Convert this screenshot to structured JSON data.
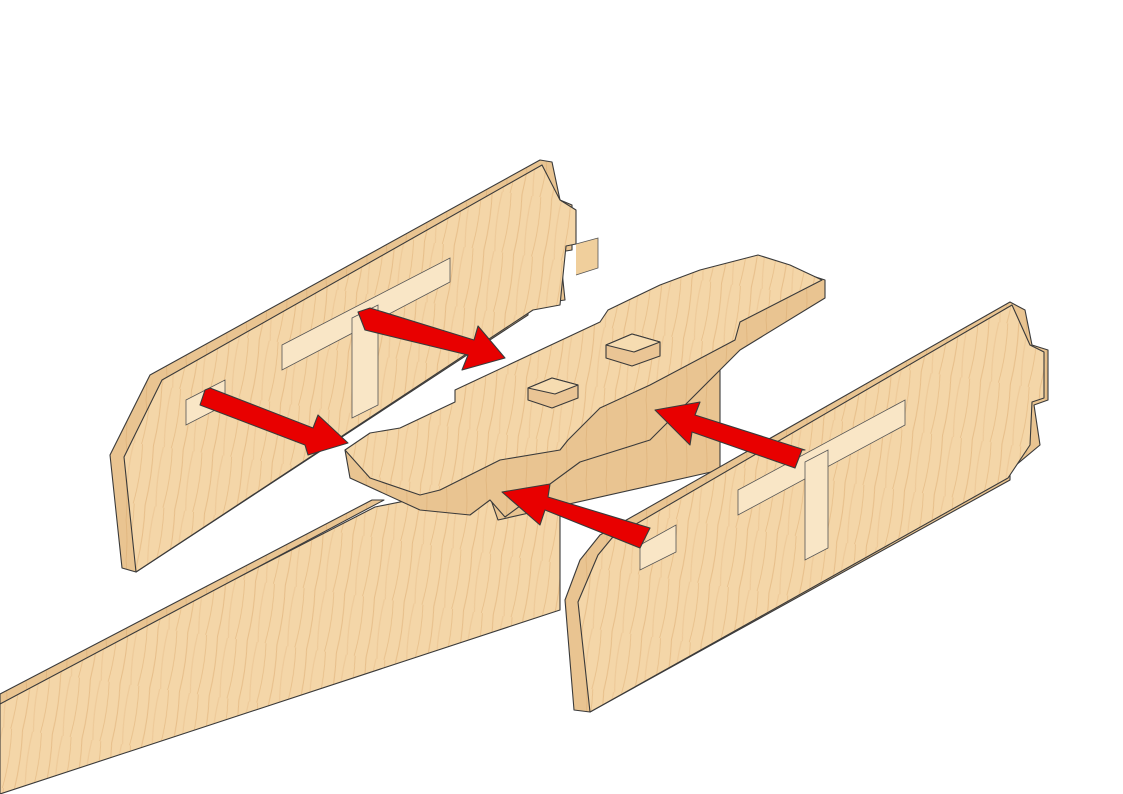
{
  "figure": {
    "kind": "assembly-instruction",
    "parts": [
      "long-rail",
      "left-side-board",
      "right-side-board",
      "center-crossbar"
    ],
    "colors": {
      "wood_face": "#f4d6a8",
      "wood_edge": "#e6bd86",
      "wood_grain": "#dcae76",
      "arrow": "#e80000",
      "outline": "#3a3a3a"
    },
    "arrows": [
      {
        "name": "arrow-upper-left",
        "direction": "down-right"
      },
      {
        "name": "arrow-lower-left",
        "direction": "down-right"
      },
      {
        "name": "arrow-upper-right",
        "direction": "up-left"
      },
      {
        "name": "arrow-lower-right",
        "direction": "up-left"
      }
    ]
  }
}
